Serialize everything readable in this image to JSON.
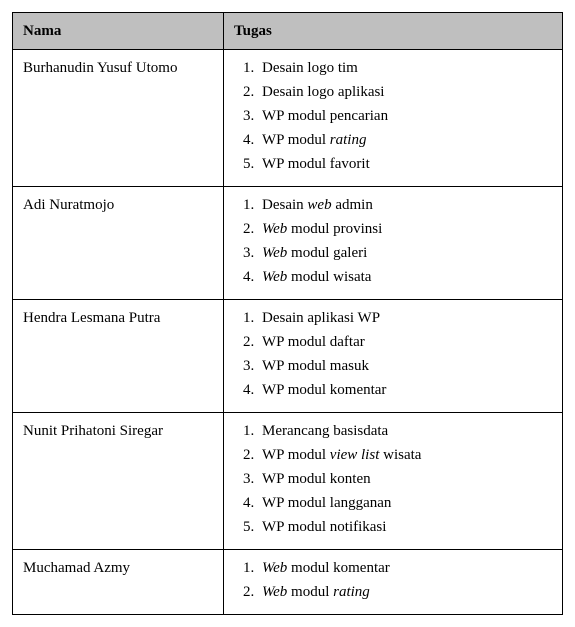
{
  "headers": {
    "col1": "Nama",
    "col2": "Tugas"
  },
  "rows": [
    {
      "name": "Burhanudin Yusuf Utomo",
      "tasks": [
        {
          "segments": [
            {
              "text": "Desain logo tim",
              "italic": false
            }
          ]
        },
        {
          "segments": [
            {
              "text": "Desain logo aplikasi",
              "italic": false
            }
          ]
        },
        {
          "segments": [
            {
              "text": "WP modul pencarian",
              "italic": false
            }
          ]
        },
        {
          "segments": [
            {
              "text": "WP modul ",
              "italic": false
            },
            {
              "text": "rating",
              "italic": true
            }
          ]
        },
        {
          "segments": [
            {
              "text": "WP modul favorit",
              "italic": false
            }
          ]
        }
      ]
    },
    {
      "name": "Adi Nuratmojo",
      "tasks": [
        {
          "segments": [
            {
              "text": "Desain ",
              "italic": false
            },
            {
              "text": "web",
              "italic": true
            },
            {
              "text": " admin",
              "italic": false
            }
          ]
        },
        {
          "segments": [
            {
              "text": "Web",
              "italic": true
            },
            {
              "text": " modul provinsi",
              "italic": false
            }
          ]
        },
        {
          "segments": [
            {
              "text": "Web",
              "italic": true
            },
            {
              "text": " modul galeri",
              "italic": false
            }
          ]
        },
        {
          "segments": [
            {
              "text": "Web",
              "italic": true
            },
            {
              "text": " modul wisata",
              "italic": false
            }
          ]
        }
      ]
    },
    {
      "name": "Hendra Lesmana Putra",
      "tasks": [
        {
          "segments": [
            {
              "text": "Desain aplikasi WP",
              "italic": false
            }
          ]
        },
        {
          "segments": [
            {
              "text": "WP modul daftar",
              "italic": false
            }
          ]
        },
        {
          "segments": [
            {
              "text": "WP modul masuk",
              "italic": false
            }
          ]
        },
        {
          "segments": [
            {
              "text": "WP modul komentar",
              "italic": false
            }
          ]
        }
      ]
    },
    {
      "name": "Nunit Prihatoni Siregar",
      "tasks": [
        {
          "segments": [
            {
              "text": "Merancang basisdata",
              "italic": false
            }
          ]
        },
        {
          "segments": [
            {
              "text": "WP modul ",
              "italic": false
            },
            {
              "text": "view list",
              "italic": true
            },
            {
              "text": " wisata",
              "italic": false
            }
          ]
        },
        {
          "segments": [
            {
              "text": "WP modul konten",
              "italic": false
            }
          ]
        },
        {
          "segments": [
            {
              "text": "WP modul langganan",
              "italic": false
            }
          ]
        },
        {
          "segments": [
            {
              "text": "WP modul notifikasi",
              "italic": false
            }
          ]
        }
      ]
    },
    {
      "name": "Muchamad Azmy",
      "tasks": [
        {
          "segments": [
            {
              "text": "Web",
              "italic": true
            },
            {
              "text": " modul komentar",
              "italic": false
            }
          ]
        },
        {
          "segments": [
            {
              "text": "Web",
              "italic": true
            },
            {
              "text": " modul ",
              "italic": false
            },
            {
              "text": "rating",
              "italic": true
            }
          ]
        }
      ]
    }
  ]
}
